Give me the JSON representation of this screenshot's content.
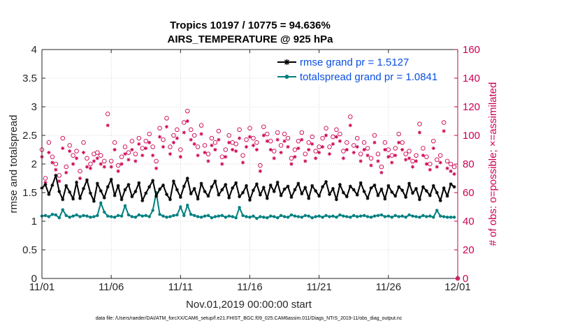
{
  "chart_data": {
    "type": "line",
    "title": "Tropics 10197 / 10775 = 94.636%",
    "subtitle": "AIRS_TEMPERATURE @ 925 hPa",
    "xlabel": "Nov.01,2019 00:00:00 start",
    "ylabel": "rmse and totalspread",
    "ylabel_right": "# of obs: o=possible; ×=assimilated",
    "footnote": "data file: /Users/raeder/DAI/ATM_forcXX/CAM6_setup/f.e21.FHIST_BGC.f09_025.CAM6assim.011/Diags_NTrS_2019-11/obs_diag_output.nc",
    "xlim": [
      0,
      30
    ],
    "ylim": [
      0,
      4
    ],
    "ylim_right": [
      0,
      160
    ],
    "x_ticks": [
      0,
      5,
      10,
      15,
      20,
      25,
      30
    ],
    "x_tick_labels": [
      "11/01",
      "11/06",
      "11/11",
      "11/16",
      "11/21",
      "11/26",
      "12/01"
    ],
    "y_ticks": [
      0,
      0.5,
      1,
      1.5,
      2,
      2.5,
      3,
      3.5,
      4
    ],
    "y_tick_labels": [
      "0",
      "0.5",
      "1",
      "1.5",
      "2",
      "2.5",
      "3",
      "3.5",
      "4"
    ],
    "y_right_ticks": [
      0,
      20,
      40,
      60,
      80,
      100,
      120,
      140,
      160
    ],
    "y_right_tick_labels": [
      "0",
      "20",
      "40",
      "60",
      "80",
      "100",
      "120",
      "140",
      "160"
    ],
    "grid": true,
    "legend_position": "top-right",
    "x": [
      0.0,
      0.25,
      0.5,
      0.75,
      1.0,
      1.25,
      1.5,
      1.75,
      2.0,
      2.25,
      2.5,
      2.75,
      3.0,
      3.25,
      3.5,
      3.75,
      4.0,
      4.25,
      4.5,
      4.75,
      5.0,
      5.25,
      5.5,
      5.75,
      6.0,
      6.25,
      6.5,
      6.75,
      7.0,
      7.25,
      7.5,
      7.75,
      8.0,
      8.25,
      8.5,
      8.75,
      9.0,
      9.25,
      9.5,
      9.75,
      10.0,
      10.25,
      10.5,
      10.75,
      11.0,
      11.25,
      11.5,
      11.75,
      12.0,
      12.25,
      12.5,
      12.75,
      13.0,
      13.25,
      13.5,
      13.75,
      14.0,
      14.25,
      14.5,
      14.75,
      15.0,
      15.25,
      15.5,
      15.75,
      16.0,
      16.25,
      16.5,
      16.75,
      17.0,
      17.25,
      17.5,
      17.75,
      18.0,
      18.25,
      18.5,
      18.75,
      19.0,
      19.25,
      19.5,
      19.75,
      20.0,
      20.25,
      20.5,
      20.75,
      21.0,
      21.25,
      21.5,
      21.75,
      22.0,
      22.25,
      22.5,
      22.75,
      23.0,
      23.25,
      23.5,
      23.75,
      24.0,
      24.25,
      24.5,
      24.75,
      25.0,
      25.25,
      25.5,
      25.75,
      26.0,
      26.25,
      26.5,
      26.75,
      27.0,
      27.25,
      27.5,
      27.75,
      28.0,
      28.25,
      28.5,
      28.75,
      29.0,
      29.25,
      29.5,
      29.75
    ],
    "series": [
      {
        "name": "rmse grand pr = 1.5127",
        "color": "#000000",
        "marker": "asterisk",
        "values": [
          1.58,
          1.64,
          1.47,
          1.63,
          1.8,
          1.52,
          1.38,
          1.62,
          1.51,
          1.39,
          1.68,
          1.4,
          1.57,
          1.72,
          1.49,
          1.35,
          1.66,
          1.53,
          1.41,
          1.6,
          1.73,
          1.45,
          1.62,
          1.38,
          1.55,
          1.64,
          1.43,
          1.52,
          1.67,
          1.36,
          1.49,
          1.6,
          1.71,
          1.44,
          1.56,
          1.63,
          1.47,
          1.38,
          1.7,
          1.55,
          1.42,
          1.61,
          1.75,
          1.48,
          1.57,
          1.39,
          1.66,
          1.52,
          1.44,
          1.6,
          1.7,
          1.46,
          1.55,
          1.64,
          1.41,
          1.58,
          1.67,
          1.43,
          1.5,
          1.62,
          1.37,
          1.54,
          1.65,
          1.46,
          1.59,
          1.4,
          1.63,
          1.52,
          1.68,
          1.45,
          1.56,
          1.61,
          1.42,
          1.55,
          1.66,
          1.48,
          1.59,
          1.4,
          1.62,
          1.53,
          1.44,
          1.6,
          1.69,
          1.47,
          1.57,
          1.38,
          1.64,
          1.5,
          1.43,
          1.61,
          1.55,
          1.46,
          1.67,
          1.52,
          1.4,
          1.58,
          1.63,
          1.45,
          1.56,
          1.39,
          1.62,
          1.51,
          1.44,
          1.6,
          1.54,
          1.42,
          1.66,
          1.49,
          1.57,
          1.38,
          1.6,
          1.53,
          1.45,
          1.62,
          1.5,
          1.36,
          1.58,
          1.44,
          1.65,
          1.6
        ]
      },
      {
        "name": "totalspread grand pr = 1.0841",
        "color": "#008080",
        "marker": "filled-dot",
        "values": [
          1.09,
          1.1,
          1.08,
          1.12,
          1.11,
          1.06,
          1.2,
          1.1,
          1.07,
          1.09,
          1.11,
          1.08,
          1.1,
          1.09,
          1.07,
          1.08,
          1.1,
          1.32,
          1.16,
          1.09,
          1.08,
          1.07,
          1.1,
          1.09,
          1.27,
          1.11,
          1.08,
          1.07,
          1.11,
          1.09,
          1.1,
          1.08,
          1.19,
          1.5,
          1.12,
          1.09,
          1.07,
          1.08,
          1.1,
          1.11,
          1.25,
          1.1,
          1.28,
          1.12,
          1.1,
          1.08,
          1.07,
          1.09,
          1.1,
          1.06,
          1.08,
          1.09,
          1.1,
          1.07,
          1.09,
          1.08,
          1.06,
          1.24,
          1.1,
          1.08,
          1.07,
          1.09,
          1.05,
          1.08,
          1.07,
          1.06,
          1.09,
          1.08,
          1.06,
          1.1,
          1.08,
          1.07,
          1.11,
          1.09,
          1.08,
          1.07,
          1.1,
          1.09,
          1.06,
          1.08,
          1.09,
          1.07,
          1.1,
          1.08,
          1.09,
          1.07,
          1.11,
          1.09,
          1.08,
          1.07,
          1.1,
          1.08,
          1.09,
          1.1,
          1.08,
          1.07,
          1.09,
          1.1,
          1.11,
          1.08,
          1.09,
          1.07,
          1.1,
          1.08,
          1.09,
          1.07,
          1.11,
          1.09,
          1.08,
          1.07,
          1.1,
          1.08,
          1.09,
          1.07,
          1.19,
          1.09,
          1.08,
          1.07,
          1.07,
          1.07
        ]
      },
      {
        "name": "obs possible",
        "axis": "right",
        "color": "#cc0052",
        "marker": "open-circle",
        "values": [
          90,
          70,
          95,
          85,
          80,
          72,
          98,
          78,
          93,
          86,
          89,
          75,
          95,
          84,
          80,
          87,
          88,
          86,
          82,
          115,
          82,
          95,
          79,
          85,
          92,
          88,
          96,
          87,
          98,
          91,
          96,
          101,
          92,
          82,
          105,
          97,
          112,
          92,
          100,
          104,
          90,
          109,
          117,
          104,
          100,
          92,
          107,
          93,
          87,
          98,
          95,
          103,
          85,
          90,
          100,
          95,
          94,
          104,
          86,
          97,
          105,
          98,
          95,
          79,
          106,
          101,
          96,
          89,
          102,
          93,
          101,
          98,
          84,
          90,
          96,
          102,
          87,
          95,
          99,
          89,
          92,
          98,
          105,
          92,
          99,
          104,
          101,
          89,
          95,
          113,
          93,
          98,
          87,
          95,
          91,
          84,
          100,
          87,
          78,
          95,
          90,
          86,
          91,
          101,
          95,
          87,
          89,
          82,
          86,
          108,
          91,
          85,
          80,
          96,
          83,
          86,
          109,
          82,
          80,
          78
        ]
      },
      {
        "name": "obs assimilated",
        "axis": "right",
        "color": "#cc0052",
        "marker": "asterisk",
        "values": [
          85,
          67,
          88,
          81,
          76,
          68,
          91,
          74,
          89,
          80,
          84,
          70,
          88,
          78,
          77,
          82,
          84,
          80,
          78,
          107,
          78,
          90,
          75,
          80,
          87,
          83,
          90,
          82,
          94,
          86,
          91,
          95,
          86,
          77,
          99,
          92,
          106,
          87,
          95,
          98,
          85,
          102,
          110,
          97,
          94,
          86,
          101,
          88,
          82,
          93,
          90,
          97,
          80,
          85,
          95,
          90,
          89,
          98,
          81,
          92,
          99,
          93,
          90,
          75,
          100,
          96,
          90,
          84,
          97,
          88,
          96,
          92,
          80,
          85,
          91,
          97,
          82,
          90,
          94,
          84,
          88,
          92,
          100,
          87,
          94,
          99,
          96,
          84,
          90,
          107,
          88,
          92,
          82,
          90,
          86,
          79,
          95,
          82,
          74,
          90,
          85,
          81,
          86,
          95,
          90,
          83,
          84,
          78,
          82,
          102,
          86,
          80,
          76,
          91,
          78,
          81,
          103,
          77,
          75,
          73
        ]
      }
    ]
  }
}
